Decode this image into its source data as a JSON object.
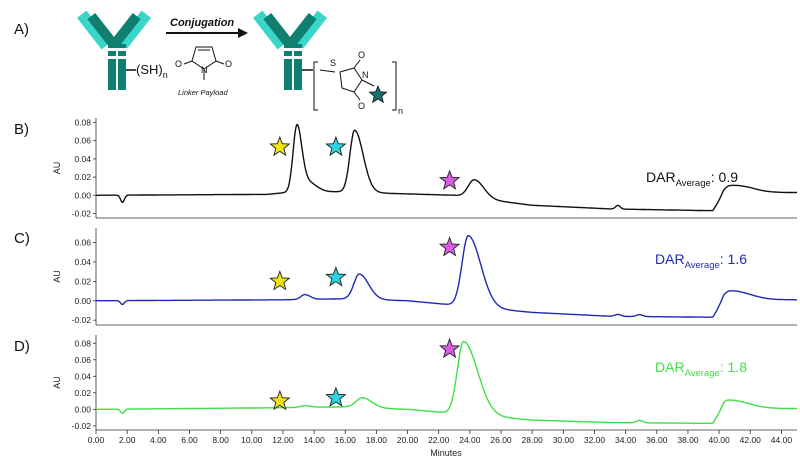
{
  "scheme": {
    "panel_label": "A)",
    "arrow_label": "Conjugation",
    "reagent_label": "Linker Payload",
    "thiol_label": "(SH)",
    "thiol_sub": "n",
    "maleimide_atoms": {
      "n": "N",
      "o_left": "O",
      "o_right": "O"
    },
    "succinimide_atoms": {
      "s": "S",
      "n": "N",
      "o_top": "O",
      "o_bottom": "O"
    },
    "bracket_sub": "n",
    "colors": {
      "antibody_light": "#3ad6c8",
      "antibody_dark": "#0f7f72",
      "payload_star": "#1d6e6a"
    }
  },
  "x_axis": {
    "title": "Minutes",
    "range": [
      0,
      45
    ],
    "tick_labels": [
      "0.00",
      "2.00",
      "4.00",
      "6.00",
      "8.00",
      "10.00",
      "12.00",
      "14.00",
      "16.00",
      "18.00",
      "20.00",
      "22.00",
      "24.00",
      "26.00",
      "28.00",
      "30.00",
      "32.00",
      "34.00",
      "36.00",
      "38.00",
      "40.00",
      "42.00",
      "44.00"
    ]
  },
  "chart_data": [
    {
      "type": "line",
      "panel_label": "B)",
      "ylabel": "AU",
      "ylim": [
        -0.025,
        0.085
      ],
      "yticks": [
        "0.08",
        "0.06",
        "0.04",
        "0.02",
        "0.00",
        "-0.02"
      ],
      "color": "#111111",
      "dar_prefix": "DAR",
      "dar_sub": "Average",
      "dar_value": ": 0.9",
      "stars": [
        {
          "x": 11.8,
          "y": 0.053,
          "color": "#f2e418"
        },
        {
          "x": 15.4,
          "y": 0.053,
          "color": "#2ed3e3"
        },
        {
          "x": 22.7,
          "y": 0.016,
          "color": "#d65de0"
        }
      ],
      "peaks": [
        {
          "x": 12.9,
          "h": 0.073,
          "wl": 0.25,
          "wr": 0.3
        },
        {
          "x": 13.5,
          "h": 0.012,
          "wl": 0.3,
          "wr": 0.6
        },
        {
          "x": 16.6,
          "h": 0.068,
          "wl": 0.3,
          "wr": 0.55
        },
        {
          "x": 24.3,
          "h": 0.02,
          "wl": 0.4,
          "wr": 0.6
        },
        {
          "x": 40.7,
          "h": 0.01,
          "wl": 0.4,
          "wr": 1.2
        }
      ],
      "baseline": [
        [
          0,
          0
        ],
        [
          11,
          0.001
        ],
        [
          12.2,
          0.003
        ],
        [
          16,
          0.004
        ],
        [
          19,
          0.002
        ],
        [
          23,
          0.0
        ],
        [
          28,
          -0.011
        ],
        [
          33,
          -0.015
        ],
        [
          39.6,
          -0.017
        ],
        [
          40.3,
          0.0
        ],
        [
          42,
          0.003
        ],
        [
          45,
          0.003
        ]
      ],
      "dips": [
        {
          "x": 1.7,
          "d": -0.008,
          "w": 0.12
        },
        {
          "x": 33.5,
          "d": 0.004,
          "w": 0.15
        }
      ]
    },
    {
      "type": "line",
      "panel_label": "C)",
      "ylabel": "AU",
      "ylim": [
        -0.025,
        0.075
      ],
      "yticks": [
        "0.06",
        "0.04",
        "0.02",
        "0.00",
        "-0.02"
      ],
      "color": "#1f2ab4",
      "dar_prefix": "DAR",
      "dar_sub": "Average",
      "dar_value": ": 1.6",
      "stars": [
        {
          "x": 11.8,
          "y": 0.02,
          "color": "#f2e418"
        },
        {
          "x": 15.4,
          "y": 0.024,
          "color": "#2ed3e3"
        },
        {
          "x": 22.7,
          "y": 0.055,
          "color": "#d65de0"
        }
      ],
      "peaks": [
        {
          "x": 13.4,
          "h": 0.005,
          "wl": 0.25,
          "wr": 0.35
        },
        {
          "x": 16.9,
          "h": 0.026,
          "wl": 0.35,
          "wr": 0.6
        },
        {
          "x": 23.9,
          "h": 0.073,
          "wl": 0.4,
          "wr": 0.8
        },
        {
          "x": 40.7,
          "h": 0.01,
          "wl": 0.4,
          "wr": 1.2
        }
      ],
      "baseline": [
        [
          0,
          0
        ],
        [
          12,
          0.001
        ],
        [
          16,
          0.002
        ],
        [
          20,
          0.0
        ],
        [
          28,
          -0.012
        ],
        [
          33,
          -0.016
        ],
        [
          39.6,
          -0.017
        ],
        [
          40.3,
          0.0
        ],
        [
          42,
          0.001
        ],
        [
          45,
          0.001
        ]
      ],
      "dips": [
        {
          "x": 1.7,
          "d": -0.004,
          "w": 0.12
        },
        {
          "x": 33.5,
          "d": 0.002,
          "w": 0.2
        },
        {
          "x": 34.9,
          "d": 0.002,
          "w": 0.2
        }
      ]
    },
    {
      "type": "line",
      "panel_label": "D)",
      "ylabel": "AU",
      "ylim": [
        -0.025,
        0.09
      ],
      "yticks": [
        "0.08",
        "0.06",
        "0.04",
        "0.02",
        "0.00",
        "-0.02"
      ],
      "color": "#3fe046",
      "dar_prefix": "DAR",
      "dar_sub": "Average",
      "dar_value": ": 1.8",
      "stars": [
        {
          "x": 11.8,
          "y": 0.01,
          "color": "#f2e418"
        },
        {
          "x": 15.4,
          "y": 0.014,
          "color": "#2ed3e3"
        },
        {
          "x": 22.7,
          "y": 0.073,
          "color": "#d65de0"
        }
      ],
      "peaks": [
        {
          "x": 13.4,
          "h": 0.002,
          "wl": 0.3,
          "wr": 0.4
        },
        {
          "x": 17.1,
          "h": 0.012,
          "wl": 0.4,
          "wr": 0.6
        },
        {
          "x": 23.6,
          "h": 0.088,
          "wl": 0.4,
          "wr": 0.9
        },
        {
          "x": 40.6,
          "h": 0.011,
          "wl": 0.4,
          "wr": 1.2
        }
      ],
      "baseline": [
        [
          0,
          0
        ],
        [
          12,
          0.002
        ],
        [
          16,
          0.003
        ],
        [
          20,
          0.0
        ],
        [
          28,
          -0.013
        ],
        [
          33,
          -0.016
        ],
        [
          39.6,
          -0.017
        ],
        [
          40.3,
          0.0
        ],
        [
          42,
          0.001
        ],
        [
          45,
          0.001
        ]
      ],
      "dips": [
        {
          "x": 1.7,
          "d": -0.005,
          "w": 0.12
        },
        {
          "x": 34.9,
          "d": 0.003,
          "w": 0.2
        }
      ]
    }
  ]
}
